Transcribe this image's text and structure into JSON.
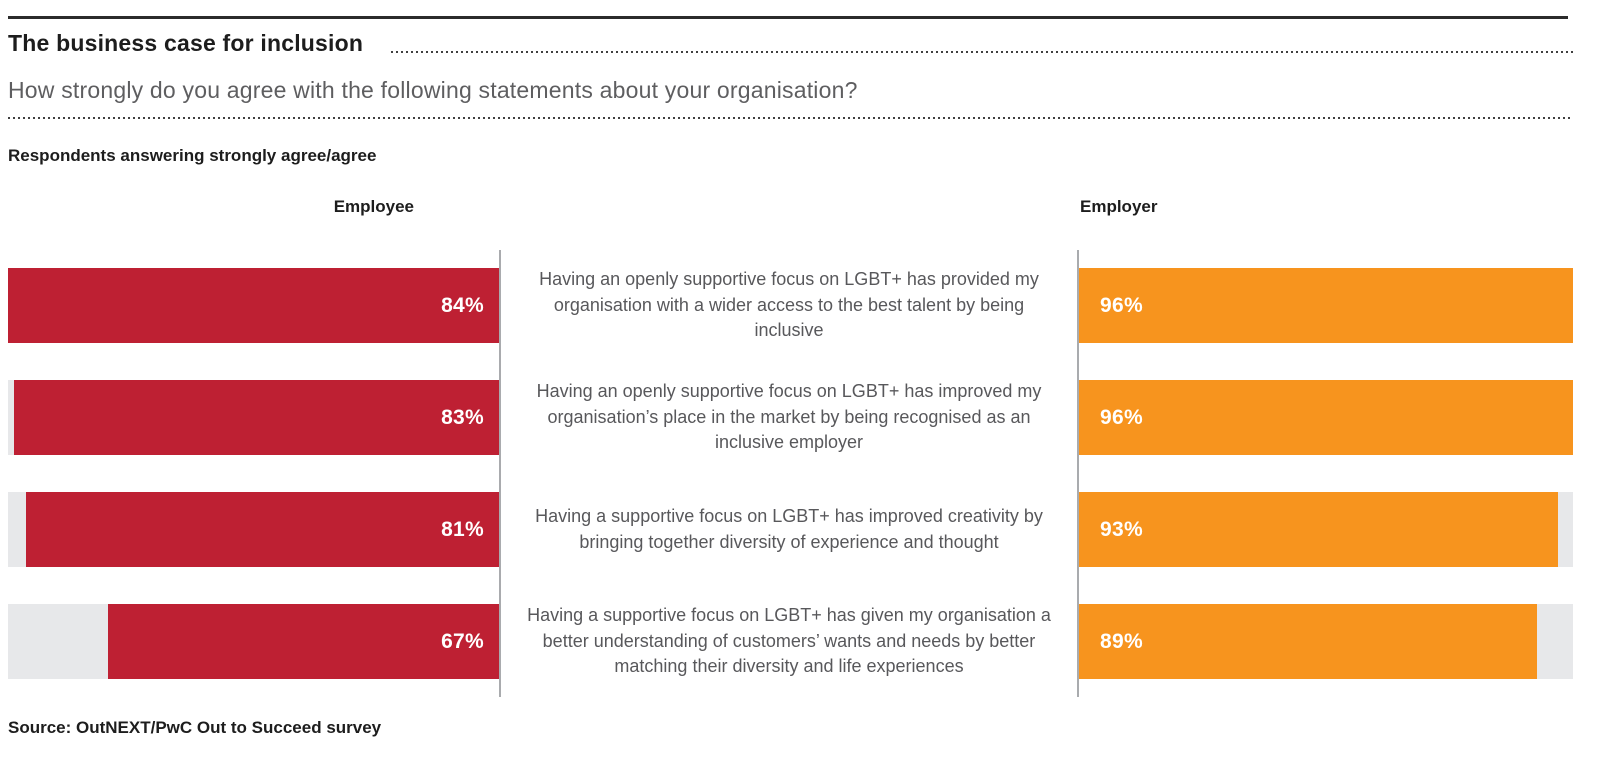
{
  "header": {
    "title": "The business case for inclusion",
    "subtitle": "How strongly do you agree with the following statements about your organisation?"
  },
  "chart_data": {
    "type": "bar",
    "orientation": "horizontal_back_to_back",
    "title": "The business case for inclusion",
    "question": "How strongly do you agree with the following statements about your organisation?",
    "note_label": "Respondents answering strongly agree/agree",
    "grid": false,
    "value_suffix": "%",
    "scale_note": "each side's bar lengths are drawn relative to that column's maximum value; light grey track shows the remainder",
    "categories": [
      "Having an openly supportive focus on LGBT+ has provided my organisation with a wider access to the best talent by being inclusive",
      "Having an openly supportive focus on LGBT+ has improved my organisation’s place in the market by being recognised as an inclusive employer",
      "Having a supportive focus on LGBT+ has improved creativity by bringing together diversity of experience and thought",
      "Having a supportive focus on LGBT+ has given my organisation a better understanding of customers’ wants and needs by better matching their diversity and life experiences"
    ],
    "series": [
      {
        "name": "Employee",
        "side": "left",
        "color": "#be2033",
        "values": [
          84,
          83,
          81,
          67
        ],
        "labels": [
          "84%",
          "83%",
          "81%",
          "67%"
        ]
      },
      {
        "name": "Employer",
        "side": "right",
        "color": "#f7941e",
        "values": [
          96,
          96,
          93,
          89
        ],
        "labels": [
          "96%",
          "96%",
          "93%",
          "89%"
        ]
      }
    ],
    "track_color": "#e7e8ea",
    "axis_color": "#a9abae",
    "label_color": "#ffffff"
  },
  "footer": {
    "source": "Source: OutNEXT/PwC Out to Succeed survey"
  }
}
